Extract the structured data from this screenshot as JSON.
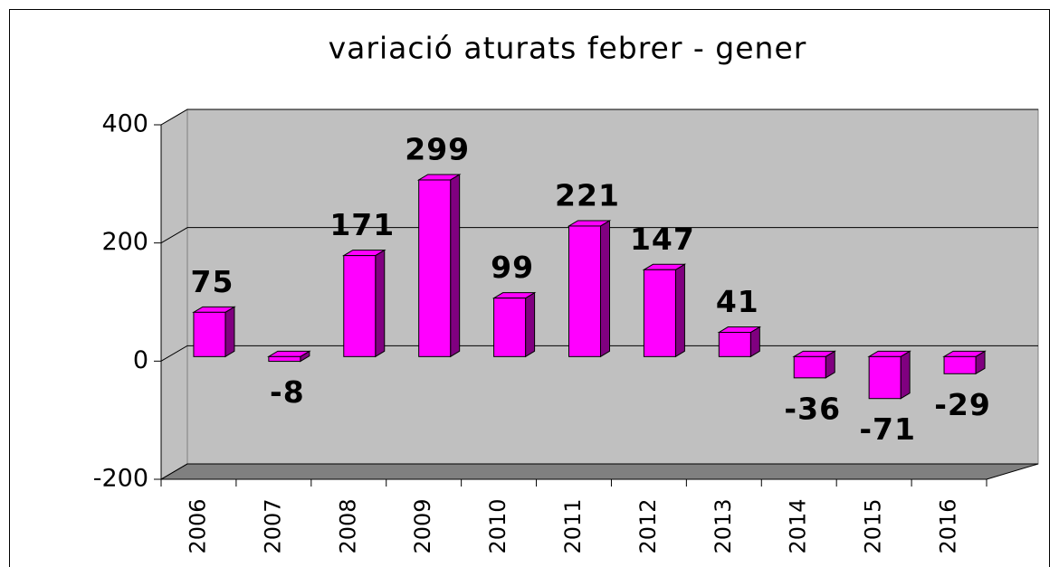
{
  "chart_data": {
    "type": "bar3d",
    "title": "variació aturats febrer - gener",
    "categories": [
      "2006",
      "2007",
      "2008",
      "2009",
      "2010",
      "2011",
      "2012",
      "2013",
      "2014",
      "2015",
      "2016"
    ],
    "values": [
      75,
      -8,
      171,
      299,
      99,
      221,
      147,
      41,
      -36,
      -71,
      -29
    ],
    "color": "#ff00ff",
    "ylim": [
      -200,
      400
    ],
    "yticks": [
      -200,
      0,
      200,
      400
    ],
    "grid": true
  }
}
